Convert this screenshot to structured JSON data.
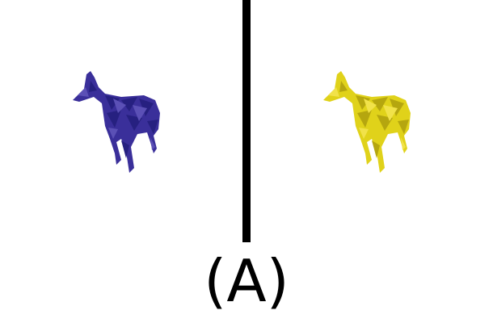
{
  "figure": {
    "caption": "(A)",
    "left_figure": {
      "icon": "giraffe-icon",
      "fill": "#3a2f9a",
      "facet": "#262080",
      "highlight": "#5b50b6"
    },
    "right_figure": {
      "icon": "giraffe-icon",
      "fill": "#e0d21a",
      "facet": "#b5a60f",
      "highlight": "#f1e24a"
    },
    "divider_color": "#000000"
  }
}
